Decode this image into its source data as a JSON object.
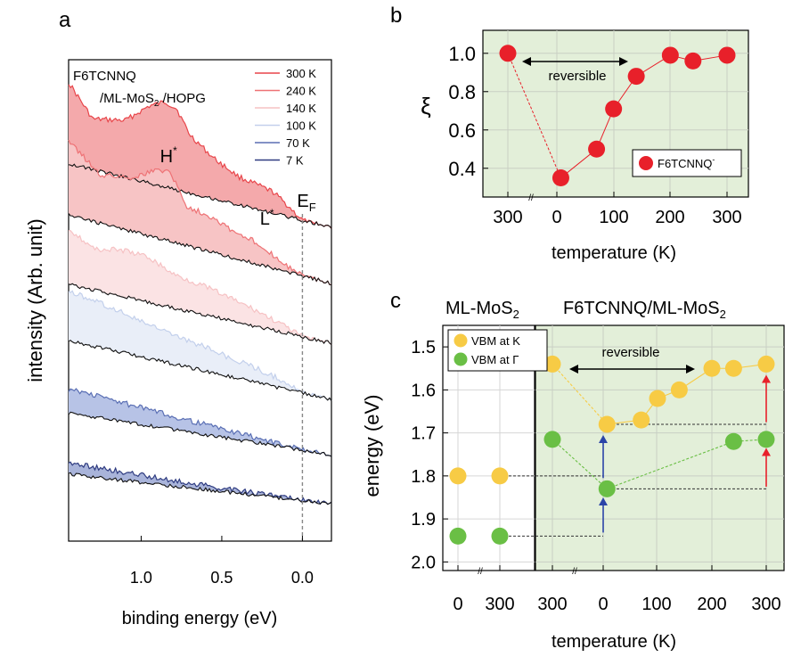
{
  "panels": {
    "a": "a",
    "b": "b",
    "c": "c"
  },
  "chart_data": [
    {
      "panel": "a",
      "type": "line",
      "title_line1": "F6TCNNQ",
      "title_line2a": "/ML-MoS",
      "title_sub": "2",
      "title_line2b": " /HOPG",
      "xlabel": "binding energy (eV)",
      "ylabel": "intensity (Arb. unit)",
      "x_reversed": true,
      "xlim": [
        1.45,
        -0.18
      ],
      "xticks": [
        1.0,
        0.5,
        0.0
      ],
      "xtick_labels": [
        "1.0",
        "0.5",
        "0.0"
      ],
      "fermi_label": "E",
      "fermi_sub": "F",
      "fermi_x": 0.0,
      "annotations": [
        {
          "text": "H",
          "sup": "*",
          "x": 0.83
        },
        {
          "text": "L",
          "sup": "*",
          "x": 0.22
        }
      ],
      "legend": [
        {
          "name": "300 K",
          "color": "#e8454a"
        },
        {
          "name": "240 K",
          "color": "#ee7275"
        },
        {
          "name": "140 K",
          "color": "#f6c2c4"
        },
        {
          "name": "100 K",
          "color": "#c3d0ec"
        },
        {
          "name": "70 K",
          "color": "#5a6fb4"
        },
        {
          "name": "7 K",
          "color": "#2e3b80"
        }
      ],
      "series": [
        {
          "name": "300 K",
          "color": "#e8454a",
          "fill": "#f4a9ab",
          "offset": 5,
          "x": [
            1.45,
            1.3,
            1.1,
            0.95,
            0.85,
            0.78,
            0.7,
            0.55,
            0.4,
            0.28,
            0.18,
            0.08,
            0.0,
            -0.18
          ],
          "y": [
            1.0,
            0.62,
            0.7,
            0.95,
            1.05,
            1.0,
            0.72,
            0.5,
            0.35,
            0.3,
            0.26,
            0.12,
            0.0,
            -0.05
          ]
        },
        {
          "name": "240 K",
          "color": "#ee7275",
          "fill": "#f7c4c5",
          "offset": 4,
          "x": [
            1.45,
            1.25,
            1.05,
            0.9,
            0.82,
            0.72,
            0.55,
            0.4,
            0.28,
            0.15,
            0.05,
            0.0,
            -0.18
          ],
          "y": [
            0.85,
            0.55,
            0.62,
            0.78,
            0.8,
            0.45,
            0.4,
            0.28,
            0.25,
            0.12,
            0.03,
            0.0,
            -0.04
          ]
        },
        {
          "name": "140 K",
          "color": "#f6c2c4",
          "fill": "#fbe3e4",
          "offset": 3,
          "x": [
            1.45,
            1.3,
            1.1,
            0.95,
            0.8,
            0.6,
            0.45,
            0.3,
            0.15,
            0.05,
            0.0,
            -0.18
          ],
          "y": [
            0.75,
            0.55,
            0.62,
            0.6,
            0.45,
            0.38,
            0.3,
            0.22,
            0.12,
            0.04,
            0.0,
            -0.03
          ]
        },
        {
          "name": "100 K",
          "color": "#c3d0ec",
          "fill": "#e9eef8",
          "offset": 2,
          "x": [
            1.45,
            1.3,
            1.15,
            0.95,
            0.8,
            0.6,
            0.45,
            0.3,
            0.15,
            0.05,
            0.0,
            -0.18
          ],
          "y": [
            0.65,
            0.62,
            0.55,
            0.45,
            0.38,
            0.32,
            0.25,
            0.2,
            0.12,
            0.04,
            0.0,
            -0.03
          ]
        },
        {
          "name": "70 K",
          "color": "#5a6fb4",
          "fill": "#b7c3e6",
          "offset": 1,
          "x": [
            1.45,
            1.3,
            1.1,
            0.9,
            0.7,
            0.5,
            0.3,
            0.15,
            0.0,
            -0.18
          ],
          "y": [
            0.45,
            0.42,
            0.35,
            0.28,
            0.22,
            0.16,
            0.1,
            0.05,
            0.0,
            -0.02
          ]
        },
        {
          "name": "7 K",
          "color": "#2e3b80",
          "fill": "#a9b4da",
          "offset": 0,
          "x": [
            1.45,
            1.3,
            1.1,
            0.9,
            0.7,
            0.5,
            0.3,
            0.15,
            0.0,
            -0.18
          ],
          "y": [
            0.3,
            0.27,
            0.22,
            0.17,
            0.13,
            0.09,
            0.06,
            0.03,
            0.0,
            -0.02
          ]
        }
      ],
      "baseline_color": "#111111"
    },
    {
      "panel": "b",
      "type": "scatter",
      "ylabel": "ξ",
      "xlabel": "temperature (K)",
      "ylim": [
        0.25,
        1.12
      ],
      "yticks": [
        0.4,
        0.6,
        0.8,
        1.0
      ],
      "ytick_labels": [
        "0.4",
        "0.6",
        "0.8",
        "1.0"
      ],
      "xtick_labels": [
        "300",
        "0",
        "100",
        "200",
        "300"
      ],
      "grid": true,
      "reversible_label": "reversible",
      "legend": {
        "label": "F6TCNNQ",
        "sup": "-",
        "color": "#e8202a",
        "placement": "bottom-right"
      },
      "points": [
        {
          "T": 300,
          "stage": "initial",
          "y": 1.0
        },
        {
          "T": 7,
          "stage": "cooling",
          "y": 0.35
        },
        {
          "T": 70,
          "stage": "warming",
          "y": 0.5
        },
        {
          "T": 100,
          "stage": "warming",
          "y": 0.71
        },
        {
          "T": 140,
          "stage": "warming",
          "y": 0.88
        },
        {
          "T": 200,
          "stage": "warming",
          "y": 0.99
        },
        {
          "T": 240,
          "stage": "warming",
          "y": 0.96
        },
        {
          "T": 300,
          "stage": "warming",
          "y": 0.99
        }
      ],
      "marker_color": "#e8202a",
      "background": "#e3efd9"
    },
    {
      "panel": "c",
      "type": "scatter",
      "ylabel": "energy (eV)",
      "xlabel": "temperature (K)",
      "ylim": [
        2.02,
        1.45
      ],
      "yticks": [
        1.5,
        1.6,
        1.7,
        1.8,
        1.9,
        2.0
      ],
      "ytick_labels": [
        "1.5",
        "1.6",
        "1.7",
        "1.8",
        "1.9",
        "2.0"
      ],
      "left_title": "ML-MoS",
      "left_title_sub": "2",
      "right_title": "F6TCNNQ/ML-MoS",
      "right_title_sub": "2",
      "left_xtick_labels": [
        "0",
        "300"
      ],
      "right_xtick_labels": [
        "300",
        "0",
        "100",
        "200",
        "300"
      ],
      "reversible_label": "reversible",
      "grid": true,
      "legend": [
        {
          "name": "VBM at K",
          "color": "#f7cb45"
        },
        {
          "name": "VBM at Γ",
          "color": "#6abf45"
        }
      ],
      "series": [
        {
          "name": "VBM at K (ML-MoS2)",
          "color": "#f7cb45",
          "points": [
            {
              "T": 7,
              "stage": "bare",
              "y": 1.8
            },
            {
              "T": 300,
              "stage": "bare",
              "y": 1.8
            }
          ]
        },
        {
          "name": "VBM at Γ (ML-MoS2)",
          "color": "#6abf45",
          "points": [
            {
              "T": 7,
              "stage": "bare",
              "y": 1.94
            },
            {
              "T": 300,
              "stage": "bare",
              "y": 1.94
            }
          ]
        },
        {
          "name": "VBM at K",
          "color": "#f7cb45",
          "points": [
            {
              "T": 300,
              "stage": "initial",
              "y": 1.54
            },
            {
              "T": 7,
              "stage": "cooling",
              "y": 1.68
            },
            {
              "T": 70,
              "stage": "warming",
              "y": 1.67
            },
            {
              "T": 100,
              "stage": "warming",
              "y": 1.62
            },
            {
              "T": 140,
              "stage": "warming",
              "y": 1.6
            },
            {
              "T": 200,
              "stage": "warming",
              "y": 1.55
            },
            {
              "T": 240,
              "stage": "warming",
              "y": 1.55
            },
            {
              "T": 300,
              "stage": "warming",
              "y": 1.54
            }
          ]
        },
        {
          "name": "VBM at Γ",
          "color": "#6abf45",
          "points": [
            {
              "T": 300,
              "stage": "initial",
              "y": 1.715
            },
            {
              "T": 7,
              "stage": "cooling",
              "y": 1.83
            },
            {
              "T": 240,
              "stage": "warming",
              "y": 1.72
            },
            {
              "T": 300,
              "stage": "warming",
              "y": 1.715
            }
          ]
        }
      ],
      "right_background": "#e3efd9"
    }
  ]
}
